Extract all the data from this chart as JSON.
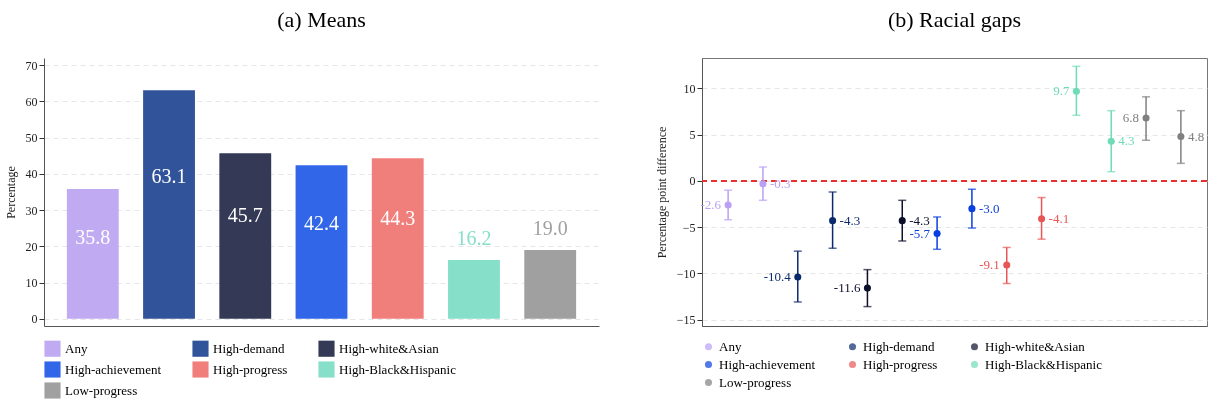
{
  "chart_data": [
    {
      "type": "bar",
      "title": "(a) Means",
      "ylabel": "Percentage",
      "categories": [
        null,
        null,
        null,
        null,
        null,
        null,
        null
      ],
      "ylim": [
        -2,
        72
      ],
      "yticks": [
        0,
        10,
        20,
        30,
        40,
        50,
        60,
        70
      ],
      "grid": "y",
      "legend": "bottom",
      "tick_labels": "y",
      "series": [
        {
          "name": "Any",
          "color": "#c0aaf2",
          "values": [
            35.8,
            null,
            null,
            null,
            null,
            null,
            null
          ],
          "value_labels": [
            "35.8",
            null,
            null,
            null,
            null,
            null,
            null
          ]
        },
        {
          "name": "High-demand",
          "color": "#315399",
          "values": [
            null,
            63.1,
            null,
            null,
            null,
            null,
            null
          ],
          "value_labels": [
            null,
            "63.1",
            null,
            null,
            null,
            null,
            null
          ]
        },
        {
          "name": "High-white&Asian",
          "color": "#343a55",
          "values": [
            null,
            null,
            45.7,
            null,
            null,
            null,
            null
          ],
          "value_labels": [
            null,
            null,
            "45.7",
            null,
            null,
            null,
            null
          ]
        },
        {
          "name": "High-achievement",
          "color": "#3166e8",
          "values": [
            null,
            null,
            null,
            42.4,
            null,
            null,
            null
          ],
          "value_labels": [
            null,
            null,
            null,
            "42.4",
            null,
            null,
            null
          ]
        },
        {
          "name": "High-progress",
          "color": "#f07f7c",
          "values": [
            null,
            null,
            null,
            null,
            44.3,
            null,
            null
          ],
          "value_labels": [
            null,
            null,
            null,
            null,
            "44.3",
            null,
            null
          ]
        },
        {
          "name": "High-Black&Hispanic",
          "color": "#86dfc9",
          "values": [
            null,
            null,
            null,
            null,
            null,
            16.2,
            null
          ],
          "value_labels": [
            null,
            null,
            null,
            null,
            null,
            "16.2",
            null
          ]
        },
        {
          "name": "Low-progress",
          "color": "#a0a0a0",
          "values": [
            null,
            null,
            null,
            null,
            null,
            null,
            19.0
          ],
          "value_labels": [
            null,
            null,
            null,
            null,
            null,
            null,
            "19.0"
          ]
        }
      ]
    },
    {
      "type": "scatter",
      "title": "(b) Racial gaps",
      "ylabel": "Percentage point difference",
      "categories": [
        null,
        null,
        null,
        null,
        null,
        null,
        null,
        null,
        null,
        null,
        null,
        null,
        null,
        null
      ],
      "ylim": [
        -15.7,
        13.3
      ],
      "yticks": [
        -15,
        -10,
        -5,
        0,
        5,
        10
      ],
      "grid": "y",
      "legend": "bottom",
      "tick_labels": "y",
      "marker": "circle",
      "ref_lines": [
        {
          "axis": "y",
          "value": 0,
          "color": "#e8312f",
          "line_style": "dashed"
        }
      ],
      "series": [
        {
          "name": "Any",
          "color": "#b9a0f5",
          "value_labels": [
            "-2.6",
            "-0.3",
            null,
            null,
            null,
            null,
            null,
            null,
            null,
            null,
            null,
            null,
            null,
            null
          ],
          "values": [
            -2.6,
            -0.3,
            null,
            null,
            null,
            null,
            null,
            null,
            null,
            null,
            null,
            null,
            null,
            null
          ],
          "errors": [
            [
              -4.2,
              -1.0
            ],
            [
              -2.1,
              1.5
            ],
            null,
            null,
            null,
            null,
            null,
            null,
            null,
            null,
            null,
            null,
            null,
            null
          ]
        },
        {
          "name": "High-demand",
          "color": "#0b2a6e",
          "value_labels": [
            null,
            null,
            "-10.4",
            "-4.3",
            null,
            null,
            null,
            null,
            null,
            null,
            null,
            null,
            null,
            null
          ],
          "values": [
            null,
            null,
            -10.4,
            -4.3,
            null,
            null,
            null,
            null,
            null,
            null,
            null,
            null,
            null,
            null
          ],
          "errors": [
            null,
            null,
            [
              -13.1,
              -7.6
            ],
            [
              -7.3,
              -1.2
            ],
            null,
            null,
            null,
            null,
            null,
            null,
            null,
            null,
            null,
            null
          ]
        },
        {
          "name": "High-white&Asian",
          "color": "#0b0f2a",
          "value_labels": [
            null,
            null,
            null,
            null,
            "-11.6",
            "-4.3",
            null,
            null,
            null,
            null,
            null,
            null,
            null,
            null
          ],
          "values": [
            null,
            null,
            null,
            null,
            -11.6,
            -4.3,
            null,
            null,
            null,
            null,
            null,
            null,
            null,
            null
          ],
          "errors": [
            null,
            null,
            null,
            null,
            [
              -13.6,
              -9.6
            ],
            [
              -6.5,
              -2.1
            ],
            null,
            null,
            null,
            null,
            null,
            null,
            null,
            null
          ]
        },
        {
          "name": "High-achievement",
          "color": "#0a3ee0",
          "value_labels": [
            null,
            null,
            null,
            null,
            null,
            null,
            "-5.7",
            "-3.0",
            null,
            null,
            null,
            null,
            null,
            null
          ],
          "values": [
            null,
            null,
            null,
            null,
            null,
            null,
            -5.7,
            -3.0,
            null,
            null,
            null,
            null,
            null,
            null
          ],
          "errors": [
            null,
            null,
            null,
            null,
            null,
            null,
            [
              -7.4,
              -3.9
            ],
            [
              -5.1,
              -0.9
            ],
            null,
            null,
            null,
            null,
            null,
            null
          ]
        },
        {
          "name": "High-progress",
          "color": "#e85555",
          "value_labels": [
            null,
            null,
            null,
            null,
            null,
            null,
            null,
            null,
            "-9.1",
            "-4.1",
            null,
            null,
            null,
            null
          ],
          "values": [
            null,
            null,
            null,
            null,
            null,
            null,
            null,
            null,
            -9.1,
            -4.1,
            null,
            null,
            null,
            null
          ],
          "errors": [
            null,
            null,
            null,
            null,
            null,
            null,
            null,
            null,
            [
              -11.1,
              -7.2
            ],
            [
              -6.3,
              -1.8
            ],
            null,
            null,
            null,
            null
          ]
        },
        {
          "name": "High-Black&Hispanic",
          "color": "#6fdcb8",
          "value_labels": [
            null,
            null,
            null,
            null,
            null,
            null,
            null,
            null,
            null,
            null,
            "9.7",
            "4.3",
            null,
            null
          ],
          "values": [
            null,
            null,
            null,
            null,
            null,
            null,
            null,
            null,
            null,
            null,
            9.7,
            4.3,
            null,
            null
          ],
          "errors": [
            null,
            null,
            null,
            null,
            null,
            null,
            null,
            null,
            null,
            null,
            [
              7.1,
              12.4
            ],
            [
              1.0,
              7.6
            ],
            null,
            null
          ]
        },
        {
          "name": "Low-progress",
          "color": "#808080",
          "value_labels": [
            null,
            null,
            null,
            null,
            null,
            null,
            null,
            null,
            null,
            null,
            null,
            null,
            "6.8",
            "4.8"
          ],
          "values": [
            null,
            null,
            null,
            null,
            null,
            null,
            null,
            null,
            null,
            null,
            null,
            null,
            6.8,
            4.8
          ],
          "errors": [
            null,
            null,
            null,
            null,
            null,
            null,
            null,
            null,
            null,
            null,
            null,
            null,
            [
              4.4,
              9.1
            ],
            [
              1.9,
              7.6
            ]
          ]
        }
      ]
    }
  ]
}
